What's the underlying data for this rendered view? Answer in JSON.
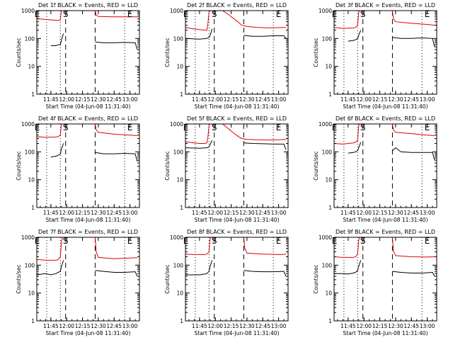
{
  "figure": {
    "xlabel": "Start Time (04-Jun-08 11:31:40)",
    "ylabel": "Counts/sec",
    "x_ticks": [
      "11:45",
      "12:00",
      "12:15",
      "12:30",
      "12:45",
      "13:00"
    ],
    "y_ticks": [
      "1",
      "10",
      "100",
      "1000"
    ],
    "colors": {
      "events": "#000000",
      "lld": "#e00000",
      "axes": "#000000"
    }
  },
  "chart_data": [
    {
      "type": "line",
      "title": "Det 1f BLACK = Events, RED = LLD",
      "xlim": [
        "11:31:40",
        "13:09:00"
      ],
      "ylim": [
        1,
        1000
      ],
      "yscale": "log",
      "grid": false,
      "markers": {
        "flags": [
          {
            "label": "E",
            "x": "11:32"
          },
          {
            "label": "S",
            "x": "11:59"
          },
          {
            "label": "E",
            "x": "13:00"
          }
        ],
        "dashed": [
          "11:59",
          "12:27"
        ],
        "dotted": [
          "11:41",
          "11:54",
          "12:55"
        ]
      },
      "series": [
        {
          "name": "BLACK = Events",
          "x": [
            "11:45",
            "11:50",
            "11:52",
            "11:54",
            "11:55",
            "11:57",
            "12:27",
            "12:35",
            "12:45",
            "12:55",
            "13:05",
            "13:07"
          ],
          "values": [
            55,
            55,
            60,
            60,
            90,
            150,
            75,
            70,
            70,
            72,
            70,
            40
          ]
        },
        {
          "name": "RED = LLD",
          "x": [
            "11:31:40",
            "11:40",
            "11:50",
            "11:52",
            "11:54",
            "11:55",
            "11:56",
            "11:57",
            "11:59",
            "12:27",
            "12:28",
            "12:30",
            "12:45",
            "13:00",
            "13:07"
          ],
          "values": [
            520,
            480,
            450,
            440,
            470,
            1000,
            1200,
            1200,
            1200,
            1200,
            700,
            620,
            600,
            600,
            600
          ]
        }
      ]
    },
    {
      "type": "line",
      "title": "Det 2f BLACK = Events, RED = LLD",
      "xlim": [
        "11:31:40",
        "13:09:00"
      ],
      "ylim": [
        1,
        1000
      ],
      "yscale": "log",
      "grid": false,
      "markers": {
        "flags": [
          {
            "label": "E",
            "x": "11:32"
          },
          {
            "label": "S",
            "x": "11:59"
          },
          {
            "label": "E",
            "x": "13:00"
          }
        ],
        "dashed": [
          "11:59",
          "12:27"
        ],
        "dotted": [
          "11:41",
          "11:54",
          "12:55"
        ]
      },
      "series": [
        {
          "name": "BLACK = Events",
          "x": [
            "11:31:40",
            "11:45",
            "11:52",
            "11:54",
            "11:55",
            "11:57",
            "12:27",
            "12:35",
            "12:45",
            "12:55",
            "13:05",
            "13:07"
          ],
          "values": [
            100,
            95,
            100,
            110,
            130,
            220,
            130,
            120,
            120,
            125,
            125,
            100
          ]
        },
        {
          "name": "RED = LLD",
          "x": [
            "11:31:40",
            "11:40",
            "11:45",
            "11:50",
            "11:52",
            "11:53",
            "11:54",
            "11:55",
            "11:56",
            "11:58",
            "12:00",
            "12:04",
            "12:07",
            "12:13",
            "12:18",
            "12:22",
            "12:25",
            "12:30",
            "12:40",
            "12:50",
            "13:00",
            "13:07"
          ],
          "values": [
            250,
            220,
            210,
            200,
            200,
            350,
            900,
            1300,
            1300,
            1300,
            1300,
            1300,
            1000,
            700,
            500,
            380,
            300,
            270,
            250,
            240,
            245,
            250
          ]
        }
      ]
    },
    {
      "type": "line",
      "title": "Det 3f BLACK = Events, RED = LLD",
      "xlim": [
        "11:31:40",
        "13:09:00"
      ],
      "ylim": [
        1,
        1000
      ],
      "yscale": "log",
      "grid": false,
      "markers": {
        "flags": [
          {
            "label": "E",
            "x": "11:32"
          },
          {
            "label": "S",
            "x": "11:59"
          },
          {
            "label": "E",
            "x": "13:00"
          }
        ],
        "dashed": [
          "11:59",
          "12:27"
        ],
        "dotted": [
          "11:41",
          "11:54",
          "12:55"
        ]
      },
      "series": [
        {
          "name": "BLACK = Events",
          "x": [
            "11:45",
            "11:50",
            "11:52",
            "11:54",
            "11:55",
            "11:57",
            "12:27",
            "12:35",
            "12:45",
            "12:55",
            "13:05",
            "13:07"
          ],
          "values": [
            80,
            85,
            90,
            100,
            130,
            200,
            110,
            100,
            100,
            105,
            100,
            50
          ]
        },
        {
          "name": "RED = LLD",
          "x": [
            "11:31:40",
            "11:40",
            "11:50",
            "11:52",
            "11:54",
            "11:55",
            "11:56",
            "11:57",
            "11:59",
            "12:27",
            "12:28",
            "12:30",
            "12:45",
            "13:00",
            "13:07"
          ],
          "values": [
            250,
            230,
            240,
            250,
            300,
            900,
            1200,
            1200,
            1200,
            1200,
            500,
            400,
            350,
            320,
            300
          ]
        }
      ]
    },
    {
      "type": "line",
      "title": "Det 4f BLACK = Events, RED = LLD",
      "xlim": [
        "11:31:40",
        "13:09:00"
      ],
      "ylim": [
        1,
        1000
      ],
      "yscale": "log",
      "grid": false,
      "markers": {
        "flags": [
          {
            "label": "E",
            "x": "11:32"
          },
          {
            "label": "S",
            "x": "11:59"
          },
          {
            "label": "E",
            "x": "13:00"
          }
        ],
        "dashed": [
          "11:59",
          "12:27"
        ],
        "dotted": [
          "11:41",
          "11:54",
          "12:55"
        ]
      },
      "series": [
        {
          "name": "BLACK = Events",
          "x": [
            "11:45",
            "11:50",
            "11:52",
            "11:54",
            "11:55",
            "11:57",
            "12:27",
            "12:35",
            "12:45",
            "12:55",
            "13:05",
            "13:07"
          ],
          "values": [
            65,
            70,
            75,
            85,
            130,
            200,
            95,
            85,
            85,
            88,
            85,
            45
          ]
        },
        {
          "name": "RED = LLD",
          "x": [
            "11:31:40",
            "11:40",
            "11:50",
            "11:52",
            "11:54",
            "11:55",
            "11:56",
            "11:57",
            "11:59",
            "12:27",
            "12:28",
            "12:30",
            "12:45",
            "13:00",
            "13:07"
          ],
          "values": [
            350,
            330,
            340,
            350,
            400,
            1000,
            1200,
            1200,
            1200,
            1200,
            600,
            500,
            430,
            400,
            380
          ]
        }
      ]
    },
    {
      "type": "line",
      "title": "Det 5f BLACK = Events, RED = LLD",
      "xlim": [
        "11:31:40",
        "13:09:00"
      ],
      "ylim": [
        1,
        1000
      ],
      "yscale": "log",
      "grid": false,
      "markers": {
        "flags": [
          {
            "label": "E",
            "x": "11:32"
          },
          {
            "label": "S",
            "x": "11:59"
          },
          {
            "label": "E",
            "x": "13:00"
          }
        ],
        "dashed": [
          "11:59",
          "12:27"
        ],
        "dotted": [
          "11:41",
          "11:54",
          "12:55"
        ]
      },
      "series": [
        {
          "name": "BLACK = Events",
          "x": [
            "11:31:40",
            "11:45",
            "11:52",
            "11:54",
            "11:55",
            "11:57",
            "12:27",
            "12:35",
            "12:45",
            "12:55",
            "13:05",
            "13:07"
          ],
          "values": [
            140,
            135,
            140,
            150,
            180,
            260,
            210,
            200,
            195,
            190,
            190,
            120
          ]
        },
        {
          "name": "RED = LLD",
          "x": [
            "11:31:40",
            "11:40",
            "11:45",
            "11:50",
            "11:52",
            "11:53",
            "11:54",
            "11:55",
            "11:56",
            "11:58",
            "12:00",
            "12:04",
            "12:07",
            "12:13",
            "12:18",
            "12:22",
            "12:25",
            "12:30",
            "12:40",
            "12:50",
            "13:00",
            "13:07"
          ],
          "values": [
            230,
            210,
            200,
            200,
            210,
            350,
            900,
            1300,
            1300,
            1300,
            1300,
            1300,
            1000,
            650,
            450,
            350,
            300,
            280,
            270,
            265,
            270,
            280
          ]
        }
      ]
    },
    {
      "type": "line",
      "title": "Det 6f BLACK = Events, RED = LLD",
      "xlim": [
        "11:31:40",
        "13:09:00"
      ],
      "ylim": [
        1,
        1000
      ],
      "yscale": "log",
      "grid": false,
      "markers": {
        "flags": [
          {
            "label": "E",
            "x": "11:32"
          },
          {
            "label": "S",
            "x": "11:59"
          },
          {
            "label": "E",
            "x": "13:00"
          }
        ],
        "dashed": [
          "11:59",
          "12:27"
        ],
        "dotted": [
          "11:41",
          "11:54",
          "12:55"
        ]
      },
      "series": [
        {
          "name": "BLACK = Events",
          "x": [
            "11:45",
            "11:50",
            "11:52",
            "11:54",
            "11:55",
            "11:57",
            "12:27",
            "12:30",
            "12:35",
            "12:45",
            "12:55",
            "13:05",
            "13:07"
          ],
          "values": [
            90,
            95,
            100,
            110,
            140,
            220,
            110,
            140,
            100,
            95,
            95,
            95,
            50
          ]
        },
        {
          "name": "RED = LLD",
          "x": [
            "11:31:40",
            "11:40",
            "11:50",
            "11:52",
            "11:54",
            "11:55",
            "11:56",
            "11:57",
            "11:59",
            "12:27",
            "12:28",
            "12:30",
            "12:45",
            "13:00",
            "13:07"
          ],
          "values": [
            200,
            190,
            210,
            220,
            260,
            900,
            1200,
            1200,
            1200,
            1200,
            600,
            500,
            450,
            400,
            380
          ]
        }
      ]
    },
    {
      "type": "line",
      "title": "Det 7f BLACK = Events, RED = LLD",
      "xlim": [
        "11:31:40",
        "13:09:00"
      ],
      "ylim": [
        1,
        1000
      ],
      "yscale": "log",
      "grid": false,
      "markers": {
        "flags": [
          {
            "label": "E",
            "x": "11:32"
          },
          {
            "label": "S",
            "x": "11:59"
          },
          {
            "label": "E",
            "x": "13:00"
          }
        ],
        "dashed": [
          "11:59",
          "12:27"
        ],
        "dotted": [
          "11:41",
          "11:54",
          "12:55"
        ]
      },
      "series": [
        {
          "name": "BLACK = Events",
          "x": [
            "11:31:40",
            "11:40",
            "11:45",
            "11:50",
            "11:52",
            "11:54",
            "11:55",
            "11:57",
            "12:27",
            "12:35",
            "12:45",
            "12:55",
            "13:05",
            "13:07"
          ],
          "values": [
            45,
            50,
            45,
            50,
            55,
            60,
            90,
            150,
            65,
            60,
            55,
            55,
            58,
            40
          ]
        },
        {
          "name": "RED = LLD",
          "x": [
            "11:31:40",
            "11:40",
            "11:50",
            "11:52",
            "11:54",
            "11:55",
            "11:56",
            "11:57",
            "11:59",
            "12:27",
            "12:28",
            "12:30",
            "12:45",
            "13:00",
            "13:07"
          ],
          "values": [
            160,
            150,
            150,
            160,
            200,
            700,
            1200,
            1200,
            1200,
            1200,
            300,
            190,
            170,
            180,
            185
          ]
        }
      ]
    },
    {
      "type": "line",
      "title": "Det 8f BLACK = Events, RED = LLD",
      "xlim": [
        "11:31:40",
        "13:09:00"
      ],
      "ylim": [
        1,
        1000
      ],
      "yscale": "log",
      "grid": false,
      "markers": {
        "flags": [
          {
            "label": "E",
            "x": "11:32"
          },
          {
            "label": "S",
            "x": "11:59"
          },
          {
            "label": "E",
            "x": "13:00"
          }
        ],
        "dashed": [
          "11:59",
          "12:27"
        ],
        "dotted": [
          "11:41",
          "11:54",
          "12:55"
        ]
      },
      "series": [
        {
          "name": "BLACK = Events",
          "x": [
            "11:31:40",
            "11:40",
            "11:45",
            "11:50",
            "11:52",
            "11:54",
            "11:55",
            "11:57",
            "12:27",
            "12:35",
            "12:45",
            "12:55",
            "13:05",
            "13:07"
          ],
          "values": [
            45,
            45,
            45,
            48,
            50,
            60,
            90,
            150,
            65,
            60,
            58,
            58,
            60,
            40
          ]
        },
        {
          "name": "RED = LLD",
          "x": [
            "11:31:40",
            "11:40",
            "11:50",
            "11:52",
            "11:54",
            "11:55",
            "11:56",
            "11:57",
            "11:59",
            "12:27",
            "12:28",
            "12:30",
            "12:45",
            "13:00",
            "13:07"
          ],
          "values": [
            250,
            240,
            240,
            250,
            300,
            900,
            1200,
            1200,
            1200,
            1200,
            400,
            270,
            250,
            240,
            245
          ]
        }
      ]
    },
    {
      "type": "line",
      "title": "Det 9f BLACK = Events, RED = LLD",
      "xlim": [
        "11:31:40",
        "13:09:00"
      ],
      "ylim": [
        1,
        1000
      ],
      "yscale": "log",
      "grid": false,
      "markers": {
        "flags": [
          {
            "label": "E",
            "x": "11:32"
          },
          {
            "label": "S",
            "x": "11:59"
          },
          {
            "label": "E",
            "x": "13:00"
          }
        ],
        "dashed": [
          "11:59",
          "12:27"
        ],
        "dotted": [
          "11:41",
          "11:54",
          "12:55"
        ]
      },
      "series": [
        {
          "name": "BLACK = Events",
          "x": [
            "11:31:40",
            "11:40",
            "11:45",
            "11:50",
            "11:52",
            "11:54",
            "11:55",
            "11:57",
            "12:27",
            "12:35",
            "12:45",
            "12:55",
            "13:05",
            "13:07"
          ],
          "values": [
            50,
            50,
            48,
            52,
            55,
            65,
            90,
            150,
            60,
            55,
            52,
            52,
            55,
            40
          ]
        },
        {
          "name": "RED = LLD",
          "x": [
            "11:31:40",
            "11:40",
            "11:50",
            "11:52",
            "11:54",
            "11:55",
            "11:56",
            "11:57",
            "11:59",
            "12:27",
            "12:28",
            "12:30",
            "12:45",
            "13:00",
            "13:07"
          ],
          "values": [
            200,
            190,
            190,
            200,
            250,
            800,
            1200,
            1200,
            1200,
            1200,
            320,
            220,
            200,
            195,
            200
          ]
        }
      ]
    }
  ]
}
